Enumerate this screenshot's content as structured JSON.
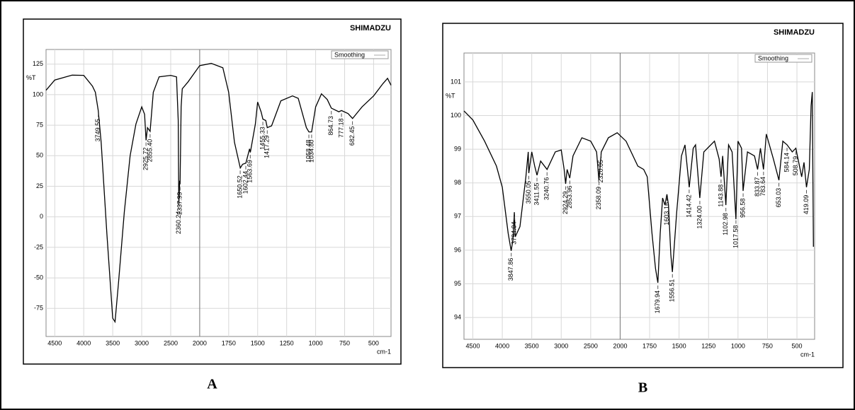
{
  "chart_data": [
    {
      "type": "line",
      "brand": "SHIMADZU",
      "ylabel": "%T",
      "xlabel": "cm-1",
      "caption": "A",
      "xlim": [
        4650,
        350
      ],
      "x_scale_break": 2000,
      "x_scale_ratio": 2,
      "xticks": [
        4500,
        4000,
        3500,
        3000,
        2500,
        2000,
        1750,
        1500,
        1250,
        1000,
        750,
        500
      ],
      "ylim": [
        -98,
        137
      ],
      "yticks": [
        125,
        100,
        75,
        50,
        25,
        0,
        -25,
        -50,
        -75
      ],
      "grid": true,
      "series": [
        {
          "name": "Smoothing",
          "color": "#000000",
          "x": [
            4650,
            4500,
            4200,
            4000,
            3850,
            3800,
            3750,
            3700,
            3600,
            3500,
            3460,
            3400,
            3300,
            3200,
            3100,
            3000,
            2950,
            2925,
            2900,
            2855,
            2800,
            2700,
            2500,
            2400,
            2370,
            2360,
            2345,
            2338,
            2320,
            2300,
            2200,
            2000,
            1900,
            1800,
            1750,
            1700,
            1650,
            1630,
            1602,
            1570,
            1563,
            1520,
            1500,
            1470,
            1455,
            1430,
            1417,
            1380,
            1300,
            1200,
            1150,
            1080,
            1058,
            1035,
            1000,
            950,
            900,
            865,
            800,
            777,
            720,
            682,
            600,
            500,
            420,
            380,
            350
          ],
          "values": [
            103.6,
            112,
            116,
            115.8,
            107,
            102,
            87,
            61,
            -14,
            -83,
            -86,
            -54,
            4,
            50,
            76,
            90,
            84,
            62.6,
            73,
            70,
            102,
            114.6,
            115.8,
            114.6,
            78.8,
            9.4,
            29.6,
            26.7,
            90,
            104.8,
            110.5,
            123.8,
            125.6,
            122,
            102,
            61,
            40,
            43,
            44,
            55.6,
            52.7,
            76,
            94,
            85.7,
            80,
            78.8,
            73,
            74.5,
            95,
            99,
            97,
            73,
            69.5,
            69.5,
            90,
            100.7,
            96,
            89,
            86,
            87,
            84.5,
            80.5,
            90,
            99,
            109,
            113.4,
            107.7
          ]
        }
      ],
      "peaks": [
        3749.55,
        2925.72,
        {
          "value": 2855.4,
          "label": "2855.40"
        },
        2360.24,
        2337.99,
        1650.52,
        1602.44,
        1563.69,
        1455.33,
        1417.29,
        1058.48,
        {
          "value": 1034.8,
          "label": "1034.80"
        },
        864.73,
        777.18,
        682.45
      ]
    },
    {
      "type": "line",
      "brand": "SHIMADZU",
      "ylabel": "%T",
      "xlabel": "cm-1",
      "caption": "B",
      "xlim": [
        4650,
        350
      ],
      "x_scale_break": 2000,
      "x_scale_ratio": 2,
      "xticks": [
        4500,
        4000,
        3500,
        3000,
        2500,
        2000,
        1750,
        1500,
        1250,
        1000,
        750,
        500
      ],
      "ylim": [
        93.35,
        101.86
      ],
      "yticks": [
        101,
        100,
        99,
        98,
        97,
        96,
        95,
        94
      ],
      "grid": true,
      "series": [
        {
          "name": "Smoothing",
          "color": "#000000",
          "x": [
            4650,
            4500,
            4300,
            4100,
            4000,
            3900,
            3850,
            3820,
            3795,
            3780,
            3700,
            3600,
            3560,
            3550,
            3500,
            3450,
            3411,
            3350,
            3240,
            3100,
            3000,
            2950,
            2925,
            2900,
            2855,
            2800,
            2650,
            2500,
            2400,
            2360,
            2340,
            2320,
            2200,
            2050,
            1950,
            1850,
            1800,
            1770,
            1730,
            1700,
            1680,
            1660,
            1640,
            1620,
            1603,
            1590,
            1570,
            1557,
            1520,
            1480,
            1450,
            1414,
            1380,
            1360,
            1324,
            1290,
            1200,
            1160,
            1144,
            1130,
            1103,
            1080,
            1050,
            1018,
            1000,
            970,
            957,
            920,
            860,
            834,
            810,
            784,
            760,
            700,
            653,
            620,
            584,
            540,
            509,
            460,
            440,
            419,
            395,
            380,
            370,
            360
          ],
          "values": [
            100.14,
            99.87,
            99.24,
            98.5,
            97.87,
            96.5,
            95.98,
            96.3,
            97.13,
            96.4,
            96.7,
            98.18,
            98.92,
            98.29,
            98.92,
            98.5,
            98.23,
            98.65,
            98.4,
            98.92,
            98.98,
            98.4,
            97.97,
            98.4,
            98.14,
            98.8,
            99.34,
            99.24,
            98.92,
            98.08,
            98.5,
            98.92,
            99.34,
            99.49,
            99.24,
            98.5,
            98.4,
            98.18,
            96.5,
            95.45,
            95.03,
            96.5,
            97.55,
            97.34,
            97.66,
            97.34,
            95.87,
            95.35,
            97.13,
            98.8,
            99.13,
            97.87,
            99.03,
            99.13,
            97.55,
            98.92,
            99.24,
            98.71,
            98.18,
            98.8,
            97.34,
            99.13,
            98.92,
            96.92,
            99.24,
            99.03,
            97.76,
            98.92,
            98.8,
            98.4,
            99.03,
            98.4,
            99.45,
            98.71,
            98.08,
            99.24,
            99.13,
            98.92,
            99.03,
            98.18,
            98.61,
            97.87,
            98.4,
            100.29,
            100.7,
            96.1
          ]
        }
      ],
      "peaks": [
        3847.86,
        3794.04,
        3550.05,
        3411.55,
        3240.76,
        2924.29,
        2853.96,
        2358.09,
        2320.05,
        1679.94,
        1603.16,
        1556.51,
        1414.42,
        {
          "value": 1324,
          "label": "1324.00"
        },
        1143.88,
        1102.98,
        1017.58,
        956.58,
        833.87,
        783.64,
        653.03,
        584.14,
        508.79,
        419.09
      ]
    }
  ]
}
